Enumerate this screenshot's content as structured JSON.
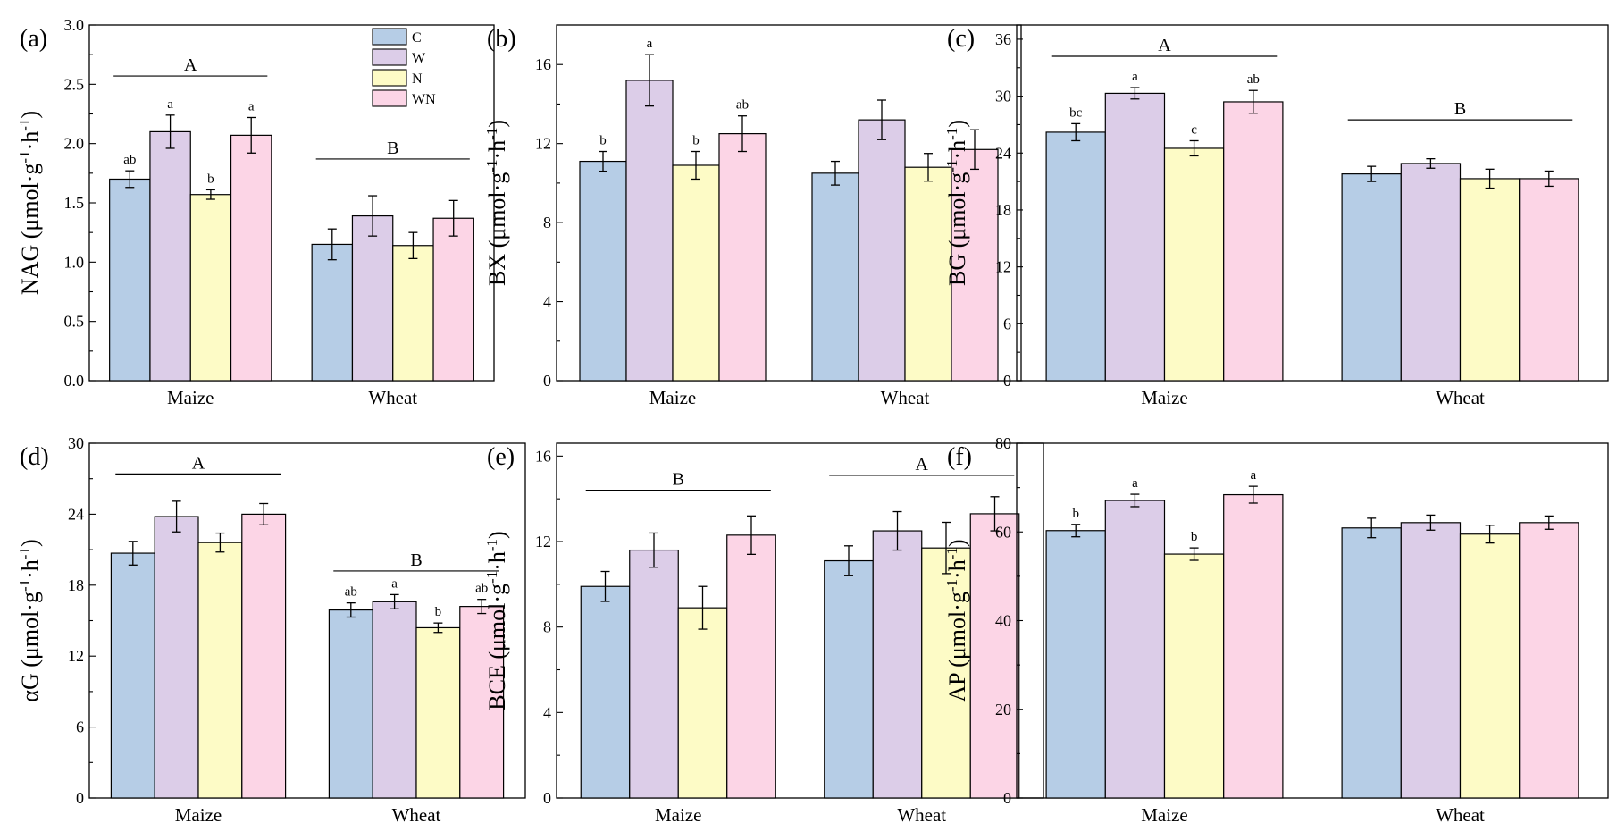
{
  "colors": {
    "C": "#b6cde6",
    "W": "#dccde8",
    "N": "#fdfbc6",
    "WN": "#fcd5e6"
  },
  "legend": [
    "C",
    "W",
    "N",
    "WN"
  ],
  "chart_data": [
    {
      "type": "bar",
      "panel": "(a)",
      "ylabel": "NAG (μmol·g-1·h-1)",
      "ylabel_main": "NAG (μmol·g",
      "ylim": [
        0,
        3.0
      ],
      "yticks": [
        "0.0",
        "0.5",
        "1.0",
        "1.5",
        "2.0",
        "2.5",
        "3.0"
      ],
      "yticks_values": [
        0,
        0.5,
        1.0,
        1.5,
        2.0,
        2.5,
        3.0
      ],
      "categories": [
        "Maize",
        "Wheat"
      ],
      "series": [
        {
          "name": "C",
          "values": [
            1.7,
            1.15
          ],
          "errors": [
            0.07,
            0.13
          ],
          "sig": [
            "ab",
            ""
          ]
        },
        {
          "name": "W",
          "values": [
            2.1,
            1.39
          ],
          "errors": [
            0.14,
            0.17
          ],
          "sig": [
            "a",
            ""
          ]
        },
        {
          "name": "N",
          "values": [
            1.57,
            1.14
          ],
          "errors": [
            0.04,
            0.11
          ],
          "sig": [
            "b",
            ""
          ]
        },
        {
          "name": "WN",
          "values": [
            2.07,
            1.37
          ],
          "errors": [
            0.15,
            0.15
          ],
          "sig": [
            "a",
            ""
          ]
        }
      ],
      "group_sig": [
        {
          "label": "A",
          "y": 2.57
        },
        {
          "label": "B",
          "y": 1.87
        }
      ],
      "legend": true
    },
    {
      "type": "bar",
      "panel": "(b)",
      "ylabel": "BX (μmol·g-1·h-1)",
      "ylabel_main": "BX (μmol·g",
      "ylim": [
        0,
        18
      ],
      "yticks": [
        "0",
        "4",
        "8",
        "12",
        "16"
      ],
      "yticks_values": [
        0,
        4,
        8,
        12,
        16
      ],
      "categories": [
        "Maize",
        "Wheat"
      ],
      "series": [
        {
          "name": "C",
          "values": [
            11.1,
            10.5
          ],
          "errors": [
            0.5,
            0.6
          ],
          "sig": [
            "b",
            ""
          ]
        },
        {
          "name": "W",
          "values": [
            15.2,
            13.2
          ],
          "errors": [
            1.3,
            1.0
          ],
          "sig": [
            "a",
            ""
          ]
        },
        {
          "name": "N",
          "values": [
            10.9,
            10.8
          ],
          "errors": [
            0.7,
            0.7
          ],
          "sig": [
            "b",
            ""
          ]
        },
        {
          "name": "WN",
          "values": [
            12.5,
            11.7
          ],
          "errors": [
            0.9,
            1.0
          ],
          "sig": [
            "ab",
            ""
          ]
        }
      ],
      "group_sig": [],
      "legend": false
    },
    {
      "type": "bar",
      "panel": "(c)",
      "ylabel": "BG (μmol·g-1·h-1)",
      "ylabel_main": "BG (μmol·g",
      "ylim": [
        0,
        37.5
      ],
      "yticks": [
        "0",
        "6",
        "12",
        "18",
        "24",
        "30",
        "36"
      ],
      "yticks_values": [
        0,
        6,
        12,
        18,
        24,
        30,
        36
      ],
      "categories": [
        "Maize",
        "Wheat"
      ],
      "series": [
        {
          "name": "C",
          "values": [
            26.2,
            21.8
          ],
          "errors": [
            0.9,
            0.8
          ],
          "sig": [
            "bc",
            ""
          ]
        },
        {
          "name": "W",
          "values": [
            30.3,
            22.9
          ],
          "errors": [
            0.6,
            0.5
          ],
          "sig": [
            "a",
            ""
          ]
        },
        {
          "name": "N",
          "values": [
            24.5,
            21.3
          ],
          "errors": [
            0.8,
            1.0
          ],
          "sig": [
            "c",
            ""
          ]
        },
        {
          "name": "WN",
          "values": [
            29.4,
            21.3
          ],
          "errors": [
            1.2,
            0.8
          ],
          "sig": [
            "ab",
            ""
          ]
        }
      ],
      "group_sig": [
        {
          "label": "A",
          "y": 34.2
        },
        {
          "label": "B",
          "y": 27.5
        }
      ],
      "legend": false
    },
    {
      "type": "bar",
      "panel": "(d)",
      "ylabel": "αG (μmol·g-1·h-1)",
      "ylabel_main": "αG (μmol·g",
      "ylim": [
        0,
        30
      ],
      "yticks": [
        "0",
        "6",
        "12",
        "18",
        "24",
        "30"
      ],
      "yticks_values": [
        0,
        6,
        12,
        18,
        24,
        30
      ],
      "categories": [
        "Maize",
        "Wheat"
      ],
      "series": [
        {
          "name": "C",
          "values": [
            20.7,
            15.9
          ],
          "errors": [
            1.0,
            0.6
          ],
          "sig": [
            "",
            "ab"
          ]
        },
        {
          "name": "W",
          "values": [
            23.8,
            16.6
          ],
          "errors": [
            1.3,
            0.6
          ],
          "sig": [
            "",
            "a"
          ]
        },
        {
          "name": "N",
          "values": [
            21.6,
            14.4
          ],
          "errors": [
            0.8,
            0.4
          ],
          "sig": [
            "",
            "b"
          ]
        },
        {
          "name": "WN",
          "values": [
            24.0,
            16.2
          ],
          "errors": [
            0.9,
            0.6
          ],
          "sig": [
            "",
            "ab"
          ]
        }
      ],
      "group_sig": [
        {
          "label": "A",
          "y": 27.4
        },
        {
          "label": "B",
          "y": 19.2
        }
      ],
      "legend": false
    },
    {
      "type": "bar",
      "panel": "(e)",
      "ylabel": "BCE (μmol·g-1·h-1)",
      "ylabel_main": "BCE (μmol·g",
      "ylim": [
        0,
        16.6
      ],
      "yticks": [
        "0",
        "4",
        "8",
        "12",
        "16"
      ],
      "yticks_values": [
        0,
        4,
        8,
        12,
        16
      ],
      "categories": [
        "Maize",
        "Wheat"
      ],
      "series": [
        {
          "name": "C",
          "values": [
            9.9,
            11.1
          ],
          "errors": [
            0.7,
            0.7
          ],
          "sig": [
            "",
            ""
          ]
        },
        {
          "name": "W",
          "values": [
            11.6,
            12.5
          ],
          "errors": [
            0.8,
            0.9
          ],
          "sig": [
            "",
            ""
          ]
        },
        {
          "name": "N",
          "values": [
            8.9,
            11.7
          ],
          "errors": [
            1.0,
            1.2
          ],
          "sig": [
            "",
            ""
          ]
        },
        {
          "name": "WN",
          "values": [
            12.3,
            13.3
          ],
          "errors": [
            0.9,
            0.8
          ],
          "sig": [
            "",
            ""
          ]
        }
      ],
      "group_sig": [
        {
          "label": "B",
          "y": 14.4
        },
        {
          "label": "A",
          "y": 15.1
        }
      ],
      "legend": false
    },
    {
      "type": "bar",
      "panel": "(f)",
      "ylabel": "AP (μmol·g-1·h-1)",
      "ylabel_main": "AP (μmol·g",
      "ylim": [
        0,
        80
      ],
      "yticks": [
        "0",
        "20",
        "40",
        "60",
        "80"
      ],
      "yticks_values": [
        0,
        20,
        40,
        60,
        80
      ],
      "categories": [
        "Maize",
        "Wheat"
      ],
      "series": [
        {
          "name": "C",
          "values": [
            60.3,
            60.9
          ],
          "errors": [
            1.4,
            2.2
          ],
          "sig": [
            "b",
            ""
          ]
        },
        {
          "name": "W",
          "values": [
            67.1,
            62.1
          ],
          "errors": [
            1.4,
            1.7
          ],
          "sig": [
            "a",
            ""
          ]
        },
        {
          "name": "N",
          "values": [
            55.0,
            59.5
          ],
          "errors": [
            1.4,
            2.0
          ],
          "sig": [
            "b",
            ""
          ]
        },
        {
          "name": "WN",
          "values": [
            68.4,
            62.1
          ],
          "errors": [
            1.9,
            1.5
          ],
          "sig": [
            "a",
            ""
          ]
        }
      ],
      "group_sig": [],
      "legend": false
    }
  ]
}
